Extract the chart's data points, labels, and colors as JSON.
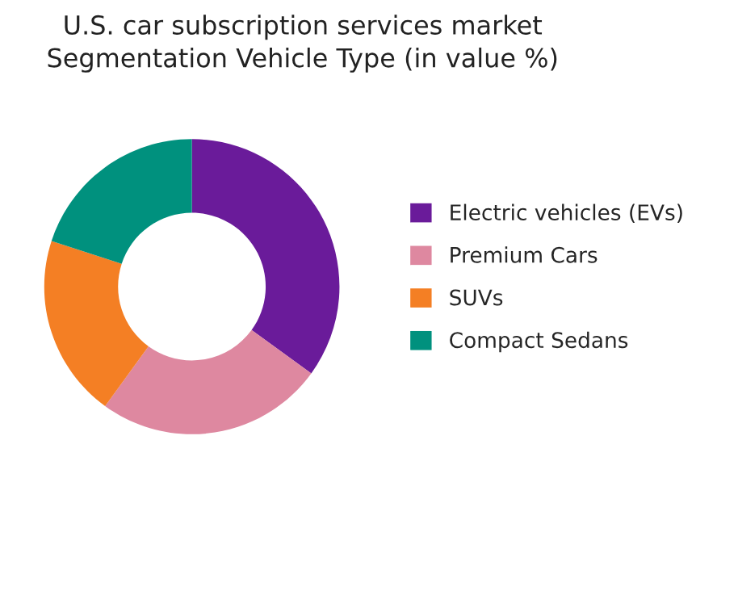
{
  "chart_data": {
    "type": "donut",
    "title": "U.S. car subscription services market\nSegmentation Vehicle Type (in value %)",
    "categories": [
      "Electric vehicles (EVs)",
      "Premium Cars",
      "SUVs",
      "Compact Sedans"
    ],
    "values": [
      35,
      25,
      20,
      20
    ],
    "colors": [
      "#6a1b9a",
      "#de88a0",
      "#f47f24",
      "#00917e"
    ],
    "legend": "right"
  }
}
